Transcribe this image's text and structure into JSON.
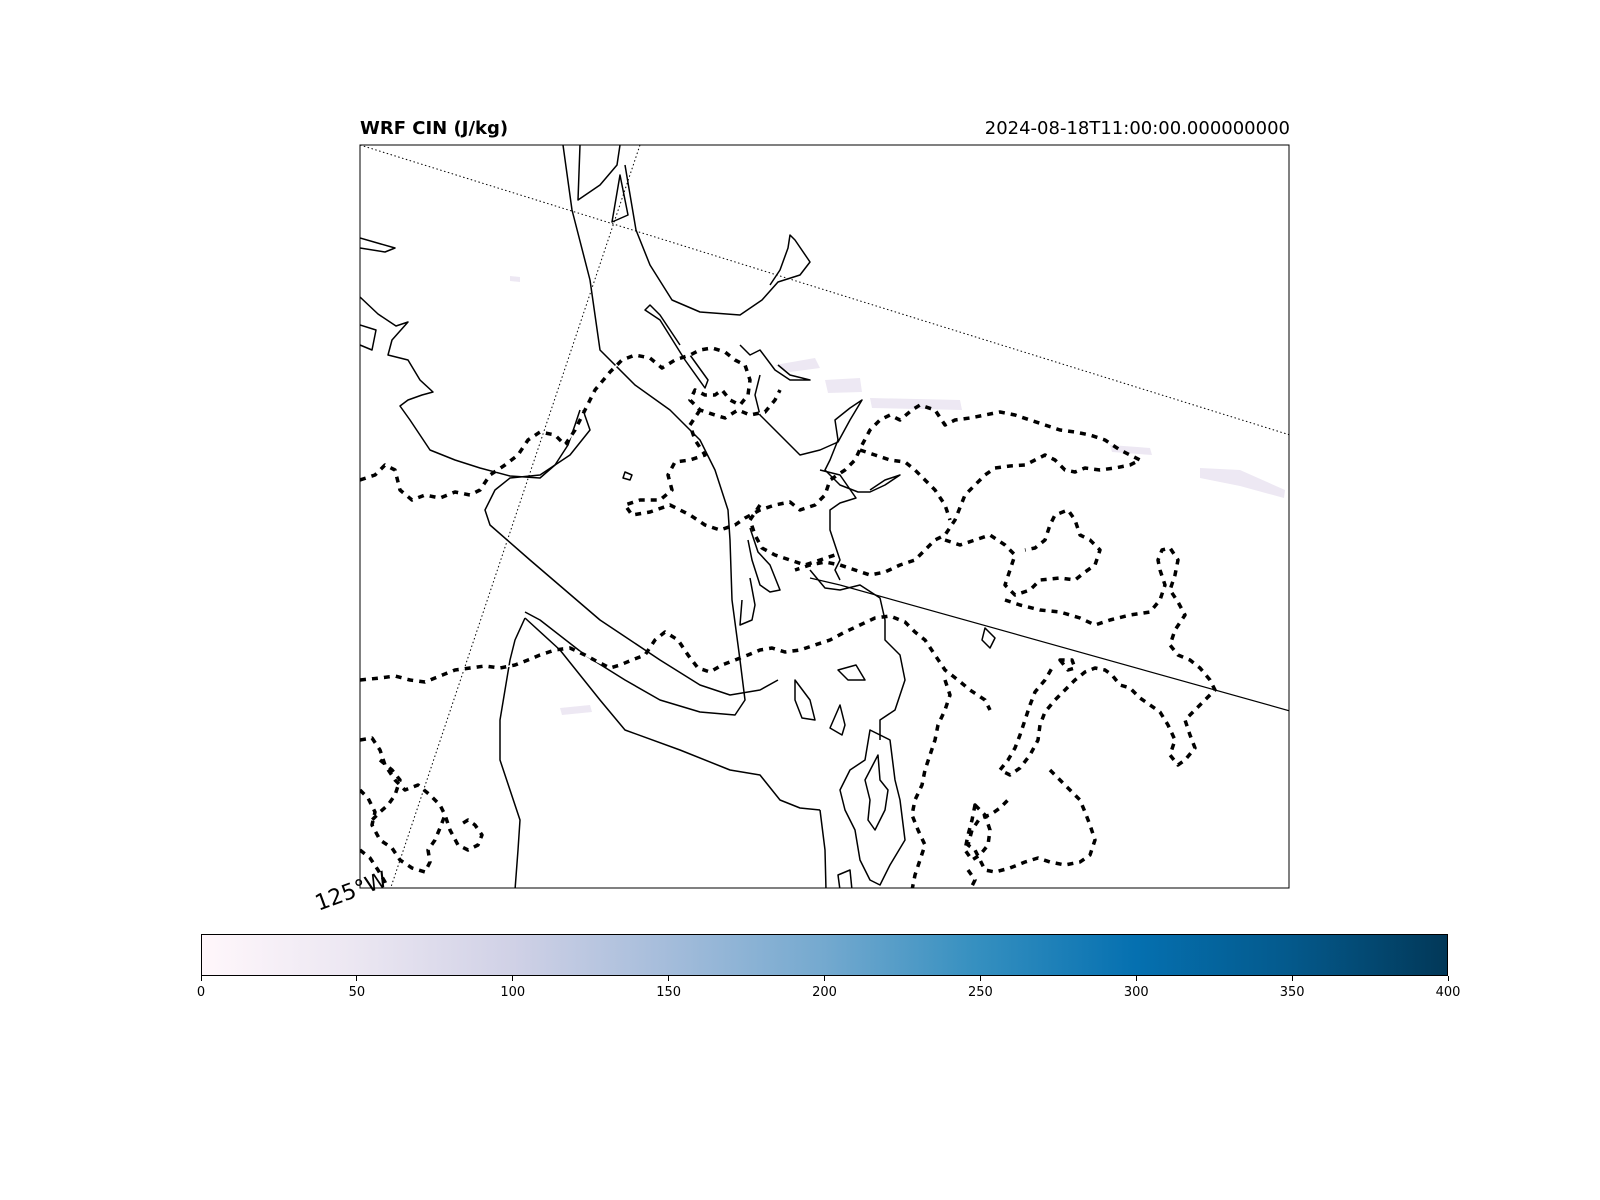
{
  "title": {
    "left": "WRF CIN (J/kg)",
    "right": "2024-08-18T11:00:00.000000000"
  },
  "map": {
    "gridline_label": "125°W",
    "colormap": "PuBu",
    "colors": {
      "coast": "#000000",
      "border": "#000000",
      "gridline": "#000000",
      "cin_faint": "#ede8f3"
    }
  },
  "colorbar": {
    "min": 0,
    "max": 400,
    "ticks": [
      "0",
      "50",
      "100",
      "150",
      "200",
      "250",
      "300",
      "350",
      "400"
    ]
  }
}
